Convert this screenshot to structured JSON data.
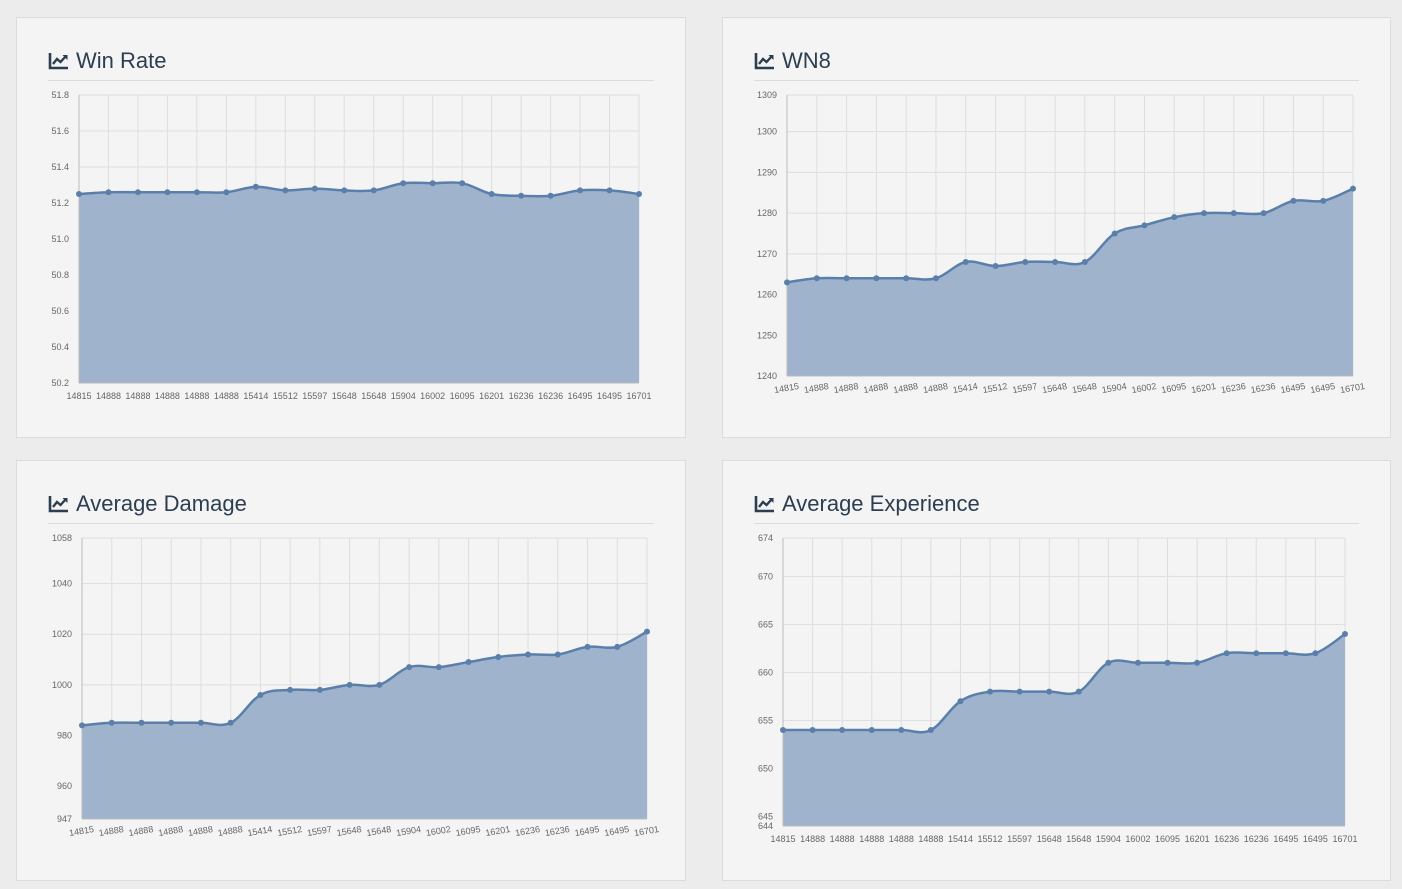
{
  "colors": {
    "area": "#a0b3cd",
    "line": "#5b7fab",
    "grid": "#dedede",
    "title": "#2c3e50"
  },
  "icons": {
    "title_icon": "line-chart-icon"
  },
  "chart_data": [
    {
      "type": "area",
      "title": "Win Rate",
      "categories": [
        "14815",
        "14888",
        "14888",
        "14888",
        "14888",
        "14888",
        "15414",
        "15512",
        "15597",
        "15648",
        "15648",
        "15904",
        "16002",
        "16095",
        "16201",
        "16236",
        "16236",
        "16495",
        "16495",
        "16701"
      ],
      "values": [
        51.25,
        51.26,
        51.26,
        51.26,
        51.26,
        51.26,
        51.29,
        51.27,
        51.28,
        51.27,
        51.27,
        51.31,
        51.31,
        51.31,
        51.25,
        51.24,
        51.24,
        51.27,
        51.27,
        51.25
      ],
      "yticks": [
        "50.2",
        "50.4",
        "50.6",
        "50.8",
        "51.0",
        "51.2",
        "51.4",
        "51.6",
        "51.8"
      ],
      "ylim": [
        50.2,
        51.8
      ],
      "grid": true
    },
    {
      "type": "area",
      "title": "WN8",
      "categories": [
        "14815",
        "14888",
        "14888",
        "14888",
        "14888",
        "14888",
        "15414",
        "15512",
        "15597",
        "15648",
        "15648",
        "15904",
        "16002",
        "16095",
        "16201",
        "16236",
        "16236",
        "16495",
        "16495",
        "16701"
      ],
      "values": [
        1263,
        1264,
        1264,
        1264,
        1264,
        1264,
        1268,
        1267,
        1268,
        1268,
        1268,
        1275,
        1277,
        1279,
        1280,
        1280,
        1280,
        1283,
        1283,
        1286
      ],
      "yticks": [
        "1240",
        "1250",
        "1260",
        "1270",
        "1280",
        "1290",
        "1300",
        "1309"
      ],
      "ylim": [
        1240,
        1309
      ],
      "grid": true
    },
    {
      "type": "area",
      "title": "Average Damage",
      "categories": [
        "14815",
        "14888",
        "14888",
        "14888",
        "14888",
        "14888",
        "15414",
        "15512",
        "15597",
        "15648",
        "15648",
        "15904",
        "16002",
        "16095",
        "16201",
        "16236",
        "16236",
        "16495",
        "16495",
        "16701"
      ],
      "values": [
        984,
        985,
        985,
        985,
        985,
        985,
        996,
        998,
        998,
        1000,
        1000,
        1007,
        1007,
        1009,
        1011,
        1012,
        1012,
        1015,
        1015,
        1021
      ],
      "yticks": [
        "947",
        "960",
        "980",
        "1000",
        "1020",
        "1040",
        "1058"
      ],
      "ylim": [
        947,
        1058
      ],
      "grid": true
    },
    {
      "type": "area",
      "title": "Average Experience",
      "categories": [
        "14815",
        "14888",
        "14888",
        "14888",
        "14888",
        "14888",
        "15414",
        "15512",
        "15597",
        "15648",
        "15648",
        "15904",
        "16002",
        "16095",
        "16201",
        "16236",
        "16236",
        "16495",
        "16495",
        "16701"
      ],
      "values": [
        654,
        654,
        654,
        654,
        654,
        654,
        657,
        658,
        658,
        658,
        658,
        661,
        661,
        661,
        661,
        662,
        662,
        662,
        662,
        664
      ],
      "yticks": [
        "644",
        "645",
        "650",
        "655",
        "660",
        "665",
        "670",
        "674"
      ],
      "ylim": [
        644,
        674
      ],
      "grid": true
    }
  ]
}
